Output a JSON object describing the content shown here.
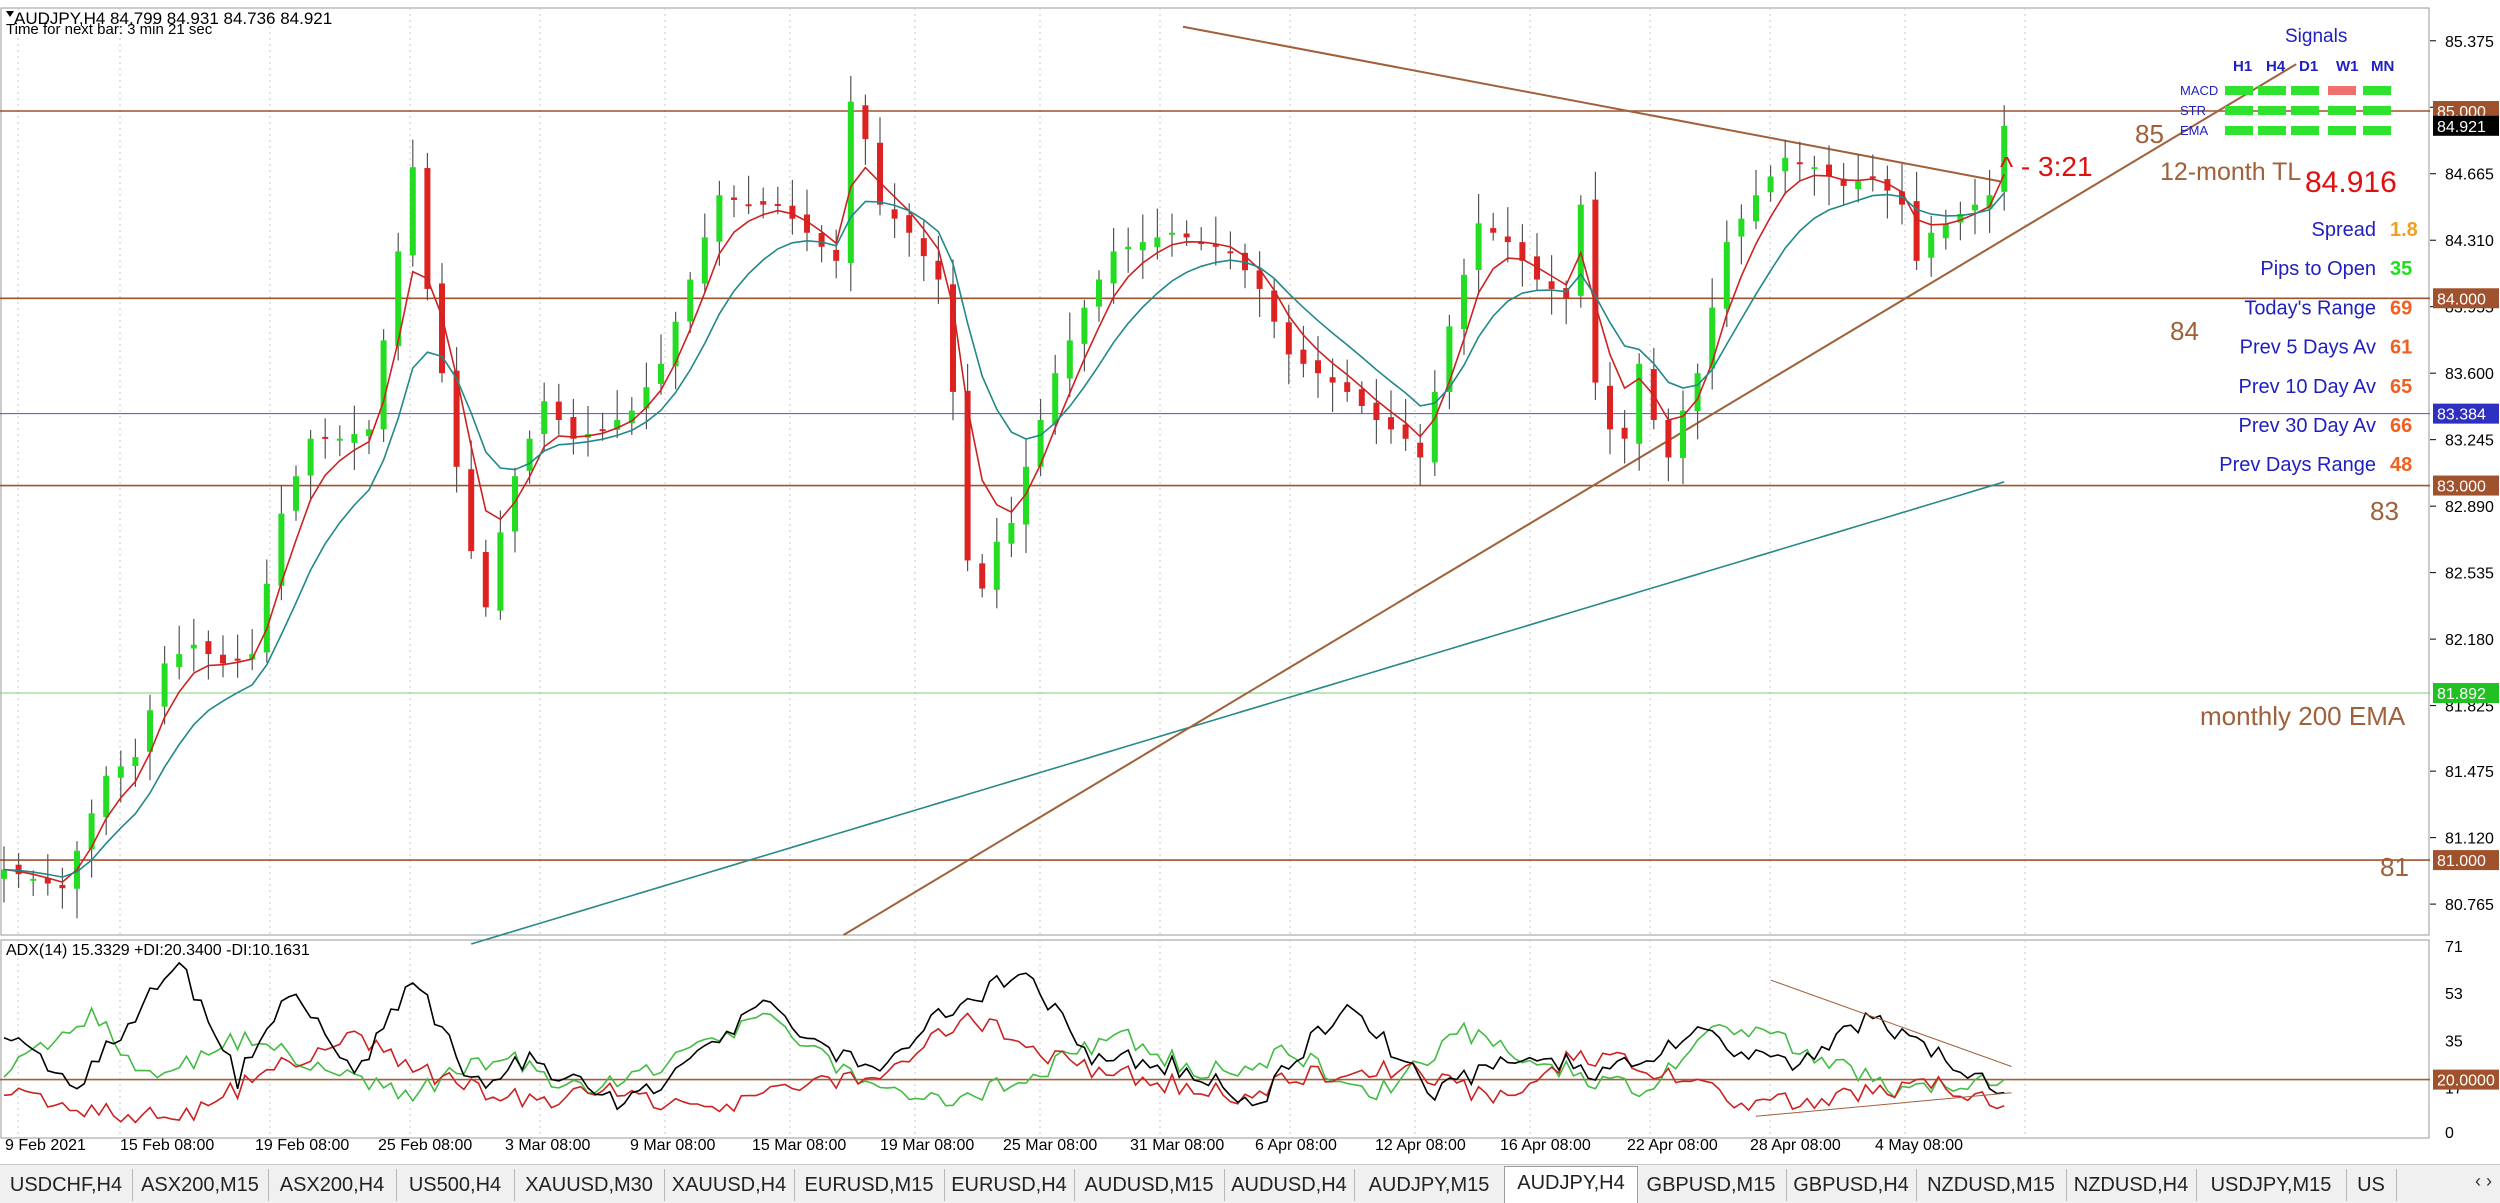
{
  "header": {
    "title_line": "AUDJPY,H4  84.799 84.931 84.736 84.921",
    "timer_line": "Time for next bar: 3 min 21 sec"
  },
  "annotations": {
    "countdown": "3:21",
    "tl_label": "12-month TL",
    "ema_label": "monthly 200 EMA",
    "price_big": "84.916",
    "level_85": "85",
    "level_84": "84",
    "level_83": "83",
    "level_81": "81"
  },
  "signals": {
    "title": "Signals",
    "timeframes": [
      "H1",
      "H4",
      "D1",
      "W1",
      "MN"
    ],
    "rows": [
      {
        "label": "MACD",
        "states": [
          "green",
          "green",
          "green",
          "red",
          "green"
        ]
      },
      {
        "label": "STR",
        "states": [
          "green",
          "green",
          "green",
          "green",
          "green"
        ]
      },
      {
        "label": "EMA",
        "states": [
          "green",
          "green",
          "green",
          "green",
          "green"
        ]
      }
    ],
    "colors": {
      "green": "#2fe22f",
      "red": "#f07070"
    }
  },
  "stats": [
    {
      "label": "Spread",
      "value": "1.8",
      "color": "#f0a020"
    },
    {
      "label": "Pips to Open",
      "value": "35",
      "color": "#22dd22"
    },
    {
      "label": "Today's Range",
      "value": "69",
      "color": "#f06020"
    },
    {
      "label": "Prev 5 Days Av",
      "value": "61",
      "color": "#f06020"
    },
    {
      "label": "Prev 10 Day Av",
      "value": "65",
      "color": "#f06020"
    },
    {
      "label": "Prev 30 Day Av",
      "value": "66",
      "color": "#f06020"
    },
    {
      "label": "Prev Days Range",
      "value": "48",
      "color": "#f06020"
    }
  ],
  "price_axis": {
    "ticks": [
      "85.375",
      "85.020",
      "84.665",
      "84.310",
      "83.955",
      "83.600",
      "83.245",
      "82.890",
      "82.535",
      "82.180",
      "81.825",
      "81.475",
      "81.120",
      "80.765"
    ],
    "tags": [
      {
        "label": "85.000",
        "bg": "#a0522d",
        "fg": "#ffffff"
      },
      {
        "label": "84.921",
        "bg": "#000000",
        "fg": "#ffffff"
      },
      {
        "label": "84.000",
        "bg": "#a0522d",
        "fg": "#ffffff"
      },
      {
        "label": "83.384",
        "bg": "#3030c0",
        "fg": "#ffffff"
      },
      {
        "label": "83.000",
        "bg": "#a0522d",
        "fg": "#ffffff"
      },
      {
        "label": "81.892",
        "bg": "#22c022",
        "fg": "#ffffff"
      },
      {
        "label": "81.000",
        "bg": "#a0522d",
        "fg": "#ffffff"
      }
    ]
  },
  "indicator": {
    "label": "ADX(14) 15.3329 +DI:20.3400 -DI:10.1631",
    "ticks": [
      "71",
      "53",
      "35",
      "17",
      "0"
    ],
    "level_tag": "20.0000"
  },
  "time_axis": [
    "9 Feb 2021",
    "15 Feb 08:00",
    "19 Feb 08:00",
    "25 Feb 08:00",
    "3 Mar 08:00",
    "9 Mar 08:00",
    "15 Mar 08:00",
    "19 Mar 08:00",
    "25 Mar 08:00",
    "31 Mar 08:00",
    "6 Apr 08:00",
    "12 Apr 08:00",
    "16 Apr 08:00",
    "22 Apr 08:00",
    "28 Apr 08:00",
    "4 May 08:00"
  ],
  "tabs": [
    "USDCHF,H4",
    "ASX200,M15",
    "ASX200,H4",
    "US500,H4",
    "XAUUSD,M30",
    "XAUUSD,H4",
    "EURUSD,M15",
    "EURUSD,H4",
    "AUDUSD,M15",
    "AUDUSD,H4",
    "AUDJPY,M15",
    "AUDJPY,H4",
    "GBPUSD,M15",
    "GBPUSD,H4",
    "NZDUSD,M15",
    "NZDUSD,H4",
    "USDJPY,M15",
    "US"
  ],
  "active_tab": "AUDJPY,H4",
  "tab_arrows": "‹ ›",
  "chart_data": {
    "type": "candlestick",
    "symbol": "AUDJPY",
    "timeframe": "H4",
    "ohlc_last": {
      "open": 84.799,
      "high": 84.931,
      "low": 84.736,
      "close": 84.921
    },
    "ylim": [
      80.6,
      85.55
    ],
    "horizontal_levels": [
      85.0,
      84.0,
      83.0,
      81.0
    ],
    "monthly_200_ema_level": 81.892,
    "blue_level": 83.384,
    "price_path": [
      [
        0,
        80.95
      ],
      [
        4,
        80.85
      ],
      [
        7,
        81.45
      ],
      [
        9,
        81.55
      ],
      [
        11,
        82.05
      ],
      [
        13,
        82.15
      ],
      [
        15,
        82.05
      ],
      [
        17,
        82.1
      ],
      [
        19,
        82.85
      ],
      [
        21,
        83.25
      ],
      [
        23,
        83.25
      ],
      [
        25,
        83.3
      ],
      [
        27,
        84.25
      ],
      [
        28,
        84.7
      ],
      [
        29,
        84.05
      ],
      [
        30,
        83.6
      ],
      [
        31,
        83.1
      ],
      [
        32,
        82.65
      ],
      [
        33,
        82.35
      ],
      [
        34,
        82.75
      ],
      [
        35,
        83.05
      ],
      [
        37,
        83.45
      ],
      [
        39,
        83.25
      ],
      [
        41,
        83.3
      ],
      [
        43,
        83.4
      ],
      [
        45,
        83.65
      ],
      [
        47,
        84.1
      ],
      [
        49,
        84.55
      ],
      [
        51,
        84.5
      ],
      [
        53,
        84.5
      ],
      [
        55,
        84.35
      ],
      [
        57,
        84.2
      ],
      [
        58,
        85.05
      ],
      [
        59,
        84.85
      ],
      [
        60,
        84.5
      ],
      [
        62,
        84.35
      ],
      [
        64,
        84.1
      ],
      [
        65,
        83.5
      ],
      [
        66,
        82.6
      ],
      [
        67,
        82.45
      ],
      [
        68,
        82.7
      ],
      [
        69,
        82.8
      ],
      [
        70,
        83.1
      ],
      [
        72,
        83.6
      ],
      [
        74,
        83.95
      ],
      [
        76,
        84.25
      ],
      [
        78,
        84.3
      ],
      [
        80,
        84.35
      ],
      [
        82,
        84.3
      ],
      [
        84,
        84.25
      ],
      [
        86,
        84.05
      ],
      [
        88,
        83.7
      ],
      [
        90,
        83.6
      ],
      [
        92,
        83.5
      ],
      [
        94,
        83.35
      ],
      [
        96,
        83.25
      ],
      [
        97,
        83.15
      ],
      [
        99,
        83.85
      ],
      [
        101,
        84.4
      ],
      [
        103,
        84.3
      ],
      [
        105,
        84.1
      ],
      [
        107,
        84.0
      ],
      [
        108,
        84.5
      ],
      [
        109,
        83.55
      ],
      [
        110,
        83.3
      ],
      [
        111,
        83.25
      ],
      [
        112,
        83.65
      ],
      [
        113,
        83.35
      ],
      [
        114,
        83.15
      ],
      [
        115,
        83.4
      ],
      [
        116,
        83.6
      ],
      [
        118,
        84.3
      ],
      [
        120,
        84.55
      ],
      [
        122,
        84.75
      ],
      [
        124,
        84.7
      ],
      [
        126,
        84.6
      ],
      [
        128,
        84.65
      ],
      [
        130,
        84.5
      ],
      [
        131,
        84.2
      ],
      [
        132,
        84.35
      ],
      [
        134,
        84.45
      ],
      [
        136,
        84.55
      ],
      [
        137,
        84.92
      ]
    ],
    "trend_lines": [
      {
        "name": "12-month TL",
        "from": [
          80.75,
          85.45
        ],
        "to": [
          137.0,
          84.62
        ]
      },
      {
        "name": "rising TL",
        "from": [
          57.5,
          80.6
        ],
        "to": [
          157.0,
          85.25
        ]
      }
    ],
    "adx": {
      "level": 20,
      "ylim": [
        0,
        71
      ],
      "adx_path": [
        [
          0,
          40
        ],
        [
          5,
          18
        ],
        [
          12,
          65
        ],
        [
          16,
          20
        ],
        [
          20,
          55
        ],
        [
          24,
          22
        ],
        [
          28,
          60
        ],
        [
          32,
          18
        ],
        [
          36,
          28
        ],
        [
          42,
          10
        ],
        [
          46,
          22
        ],
        [
          52,
          50
        ],
        [
          56,
          32
        ],
        [
          60,
          25
        ],
        [
          64,
          45
        ],
        [
          70,
          62
        ],
        [
          74,
          30
        ],
        [
          80,
          25
        ],
        [
          86,
          12
        ],
        [
          92,
          50
        ],
        [
          98,
          15
        ],
        [
          104,
          30
        ],
        [
          110,
          22
        ],
        [
          116,
          38
        ],
        [
          122,
          25
        ],
        [
          128,
          44
        ],
        [
          132,
          30
        ],
        [
          137,
          15
        ]
      ],
      "plus_di_path": [
        [
          0,
          25
        ],
        [
          6,
          45
        ],
        [
          10,
          20
        ],
        [
          16,
          35
        ],
        [
          22,
          25
        ],
        [
          28,
          15
        ],
        [
          34,
          30
        ],
        [
          40,
          14
        ],
        [
          46,
          28
        ],
        [
          52,
          45
        ],
        [
          58,
          22
        ],
        [
          64,
          12
        ],
        [
          70,
          20
        ],
        [
          76,
          38
        ],
        [
          82,
          22
        ],
        [
          88,
          30
        ],
        [
          94,
          15
        ],
        [
          100,
          38
        ],
        [
          106,
          25
        ],
        [
          112,
          15
        ],
        [
          118,
          42
        ],
        [
          124,
          30
        ],
        [
          130,
          15
        ],
        [
          137,
          20
        ]
      ],
      "minus_di_path": [
        [
          0,
          18
        ],
        [
          6,
          8
        ],
        [
          12,
          5
        ],
        [
          18,
          22
        ],
        [
          24,
          38
        ],
        [
          30,
          20
        ],
        [
          36,
          12
        ],
        [
          42,
          15
        ],
        [
          48,
          8
        ],
        [
          54,
          18
        ],
        [
          60,
          22
        ],
        [
          66,
          45
        ],
        [
          72,
          28
        ],
        [
          78,
          20
        ],
        [
          84,
          14
        ],
        [
          90,
          22
        ],
        [
          96,
          25
        ],
        [
          102,
          12
        ],
        [
          108,
          30
        ],
        [
          114,
          22
        ],
        [
          120,
          10
        ],
        [
          126,
          14
        ],
        [
          132,
          18
        ],
        [
          137,
          10
        ]
      ]
    }
  }
}
